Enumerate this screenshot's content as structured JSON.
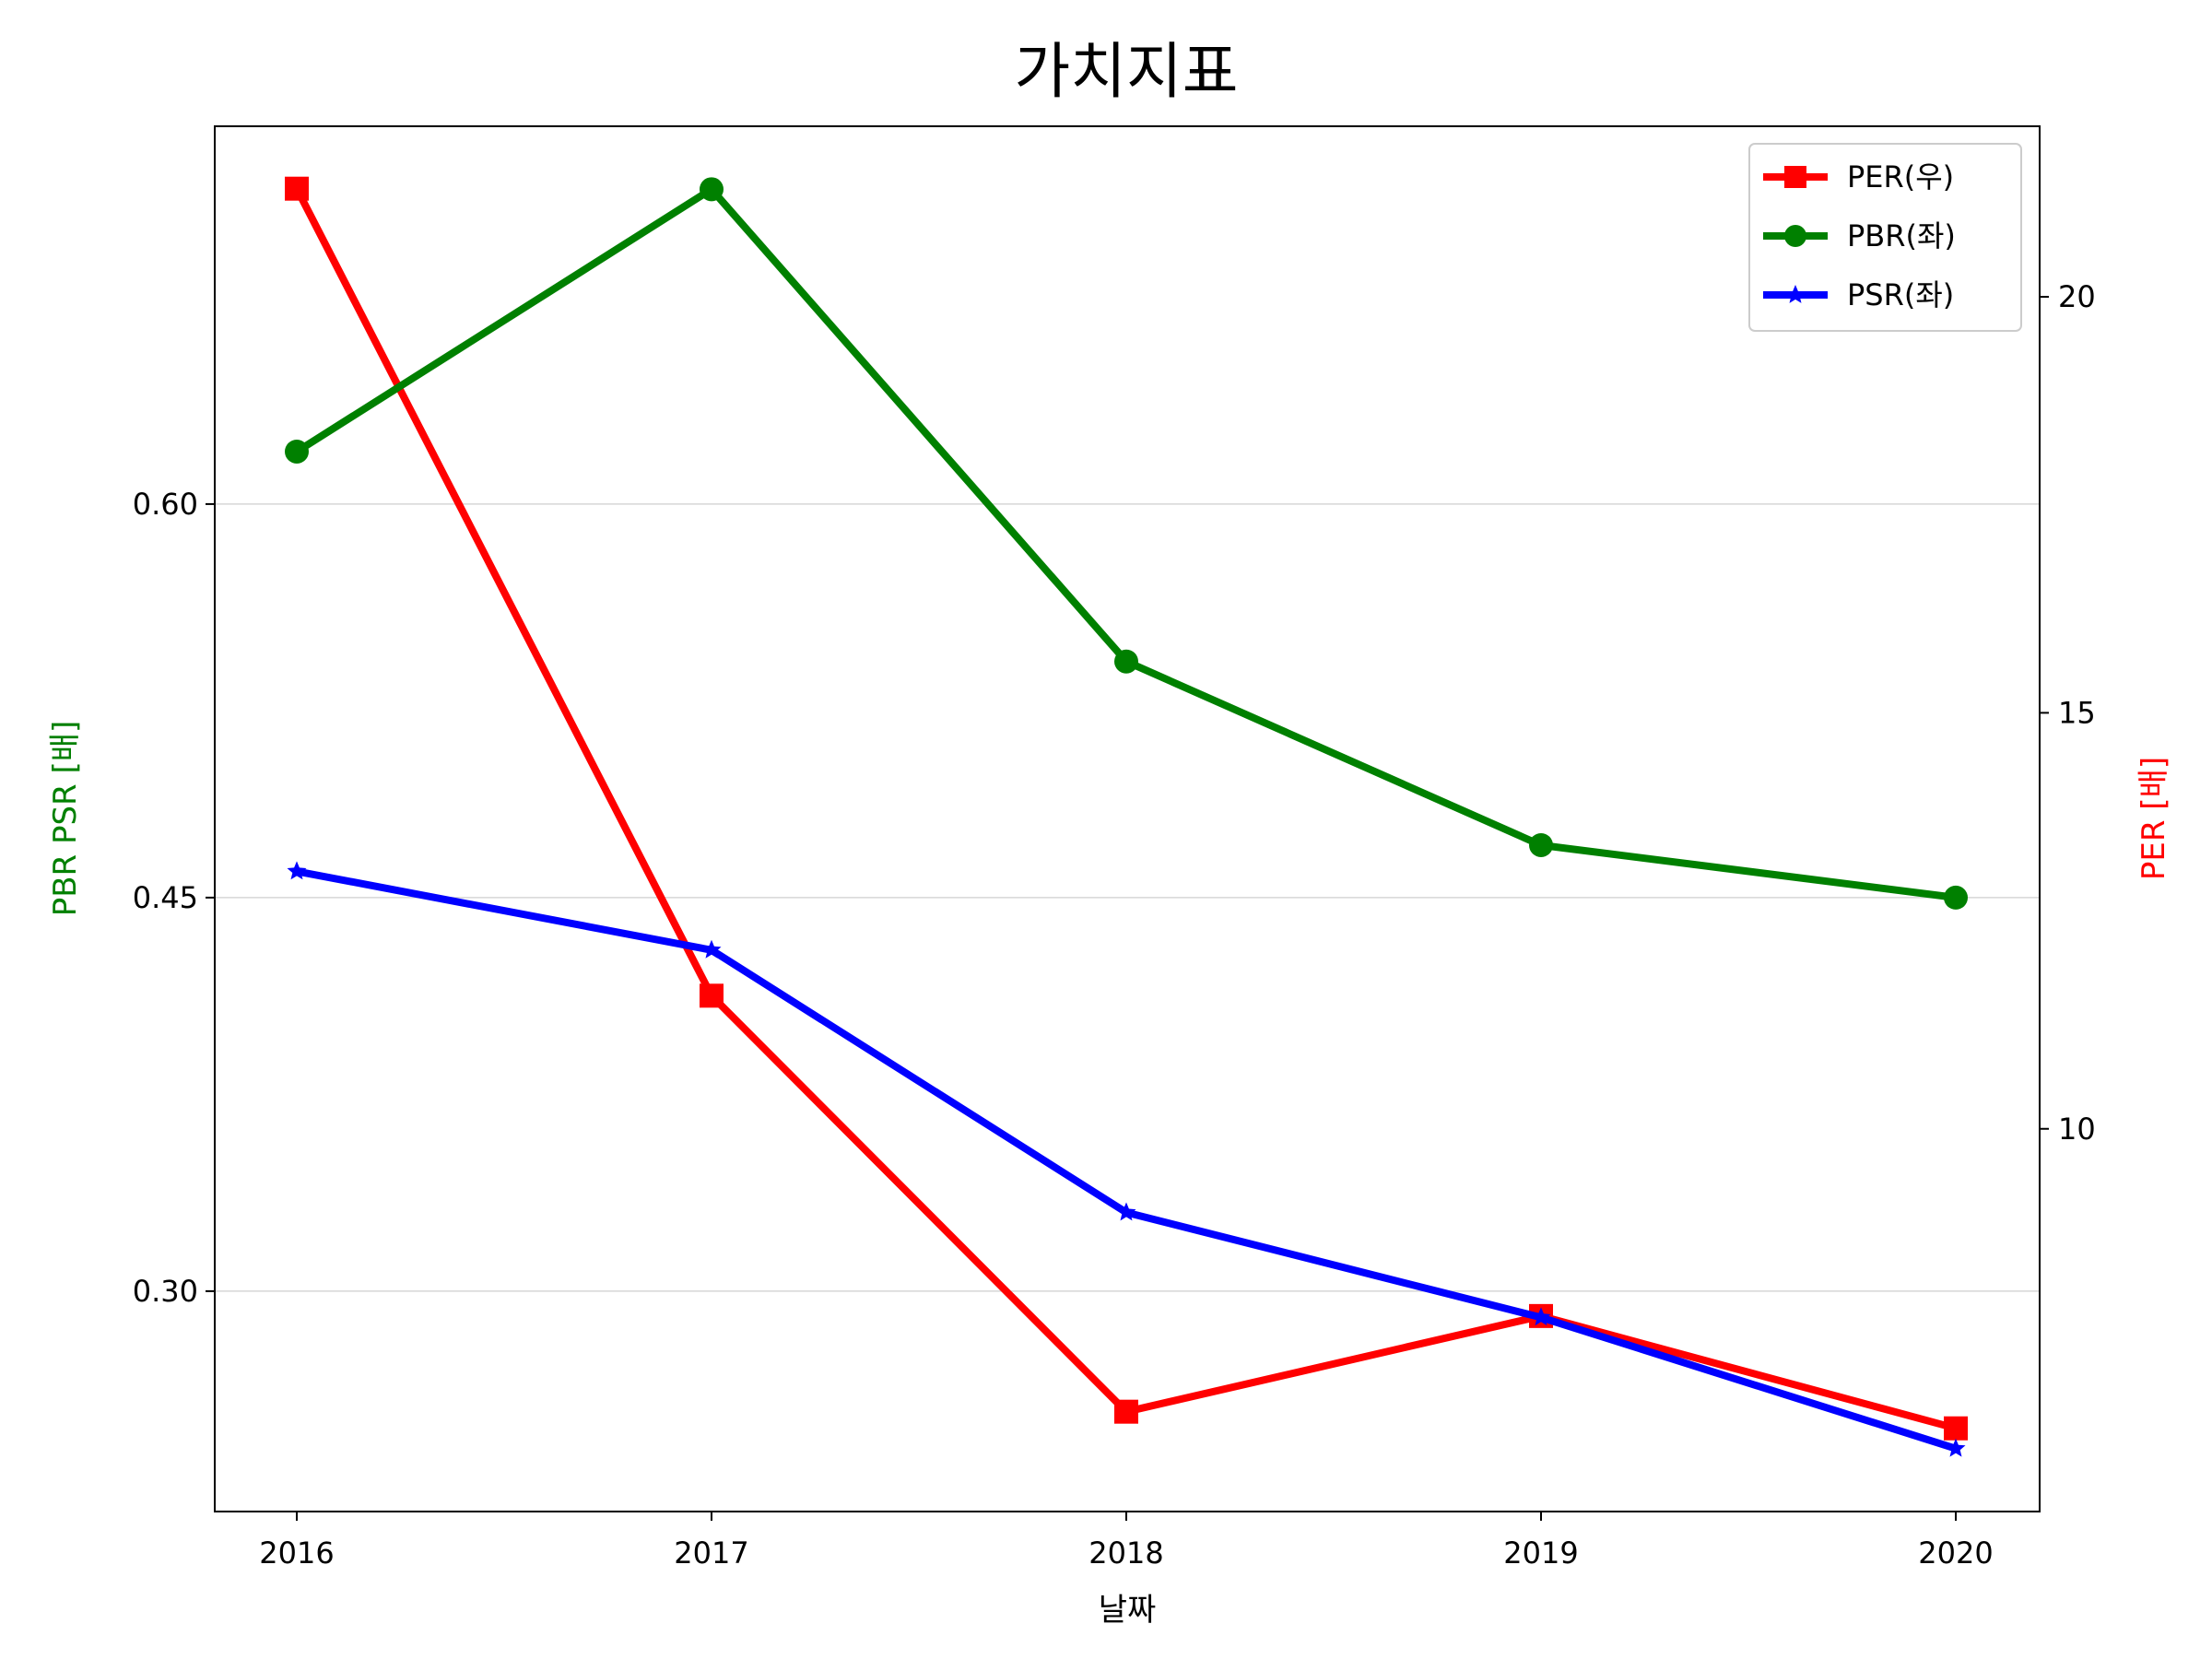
{
  "chart_data": {
    "type": "line",
    "title": "가치지표",
    "xlabel": "날짜",
    "ylabel_left": "PBR PSR [배]",
    "ylabel_right": "PER [배]",
    "ylabel_left_color": "#008000",
    "ylabel_right_color": "#ff0000",
    "x": [
      "2016",
      "2017",
      "2018",
      "2019",
      "2020"
    ],
    "y_left_ticks": [
      "0.30",
      "0.45",
      "0.60"
    ],
    "y_left_tick_values": [
      0.3,
      0.45,
      0.6
    ],
    "y_right_ticks": [
      "10",
      "15",
      "20"
    ],
    "y_right_tick_values": [
      10,
      15,
      20
    ],
    "ylim_left": [
      0.216,
      0.744
    ],
    "ylim_right": [
      5.4,
      22.05
    ],
    "grid": "horizontal (left axis)",
    "legend_placement": "top-right",
    "series": [
      {
        "name": "PER(우)",
        "axis": "right",
        "color": "#ff0000",
        "marker": "square",
        "values": [
          21.3,
          11.6,
          6.6,
          7.75,
          6.4
        ]
      },
      {
        "name": "PBR(좌)",
        "axis": "left",
        "color": "#008000",
        "marker": "circle",
        "values": [
          0.62,
          0.72,
          0.54,
          0.47,
          0.45
        ]
      },
      {
        "name": "PSR(좌)",
        "axis": "left",
        "color": "#0000ff",
        "marker": "star",
        "values": [
          0.46,
          0.43,
          0.33,
          0.29,
          0.24
        ]
      }
    ]
  }
}
